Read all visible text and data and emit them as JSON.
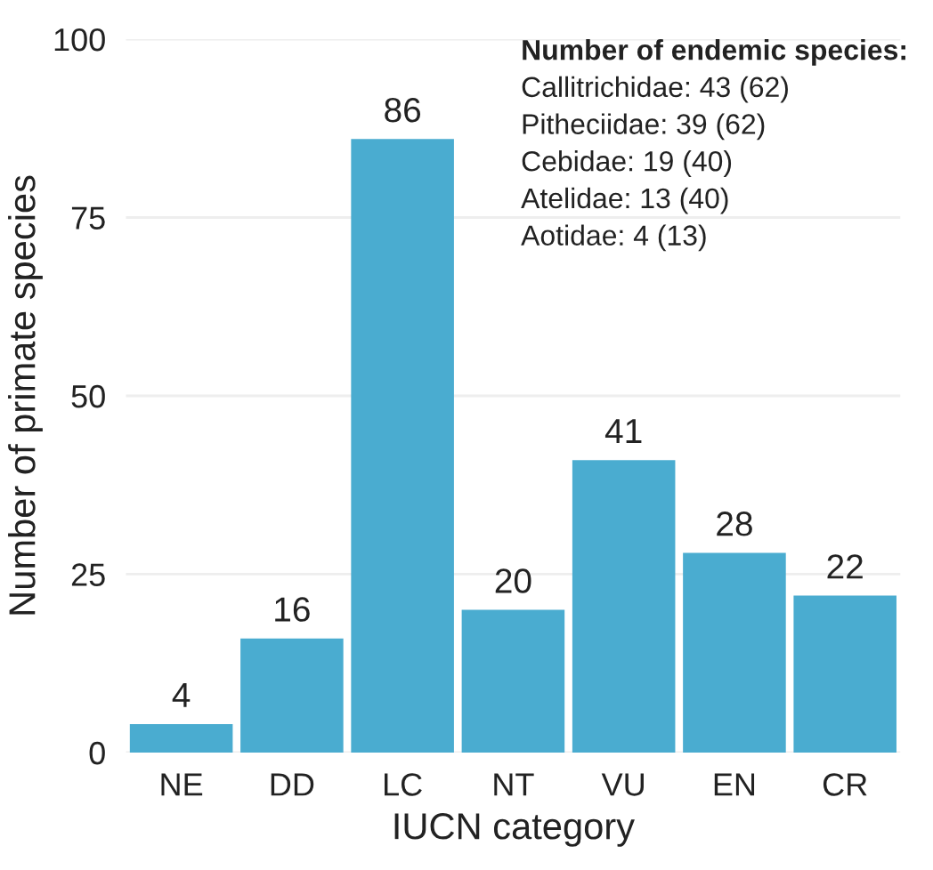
{
  "chart_data": {
    "type": "bar",
    "xlabel": "IUCN category",
    "ylabel": "Number of primate species",
    "categories": [
      "NE",
      "DD",
      "LC",
      "NT",
      "VU",
      "EN",
      "CR"
    ],
    "values": [
      4,
      16,
      86,
      20,
      41,
      28,
      22
    ],
    "color": "#4aacd0",
    "ylim": [
      0,
      100
    ],
    "yticks": [
      0,
      25,
      50,
      75,
      100
    ],
    "grid": "y",
    "data_labels": true,
    "annotations": [
      "Number of endemic species:",
      "Callitrichidae: 43 (62)",
      "Pitheciidae: 39 (62)",
      "Cebidae: 19 (40)",
      "Atelidae: 13 (40)",
      "Aotidae: 4 (13)"
    ]
  }
}
